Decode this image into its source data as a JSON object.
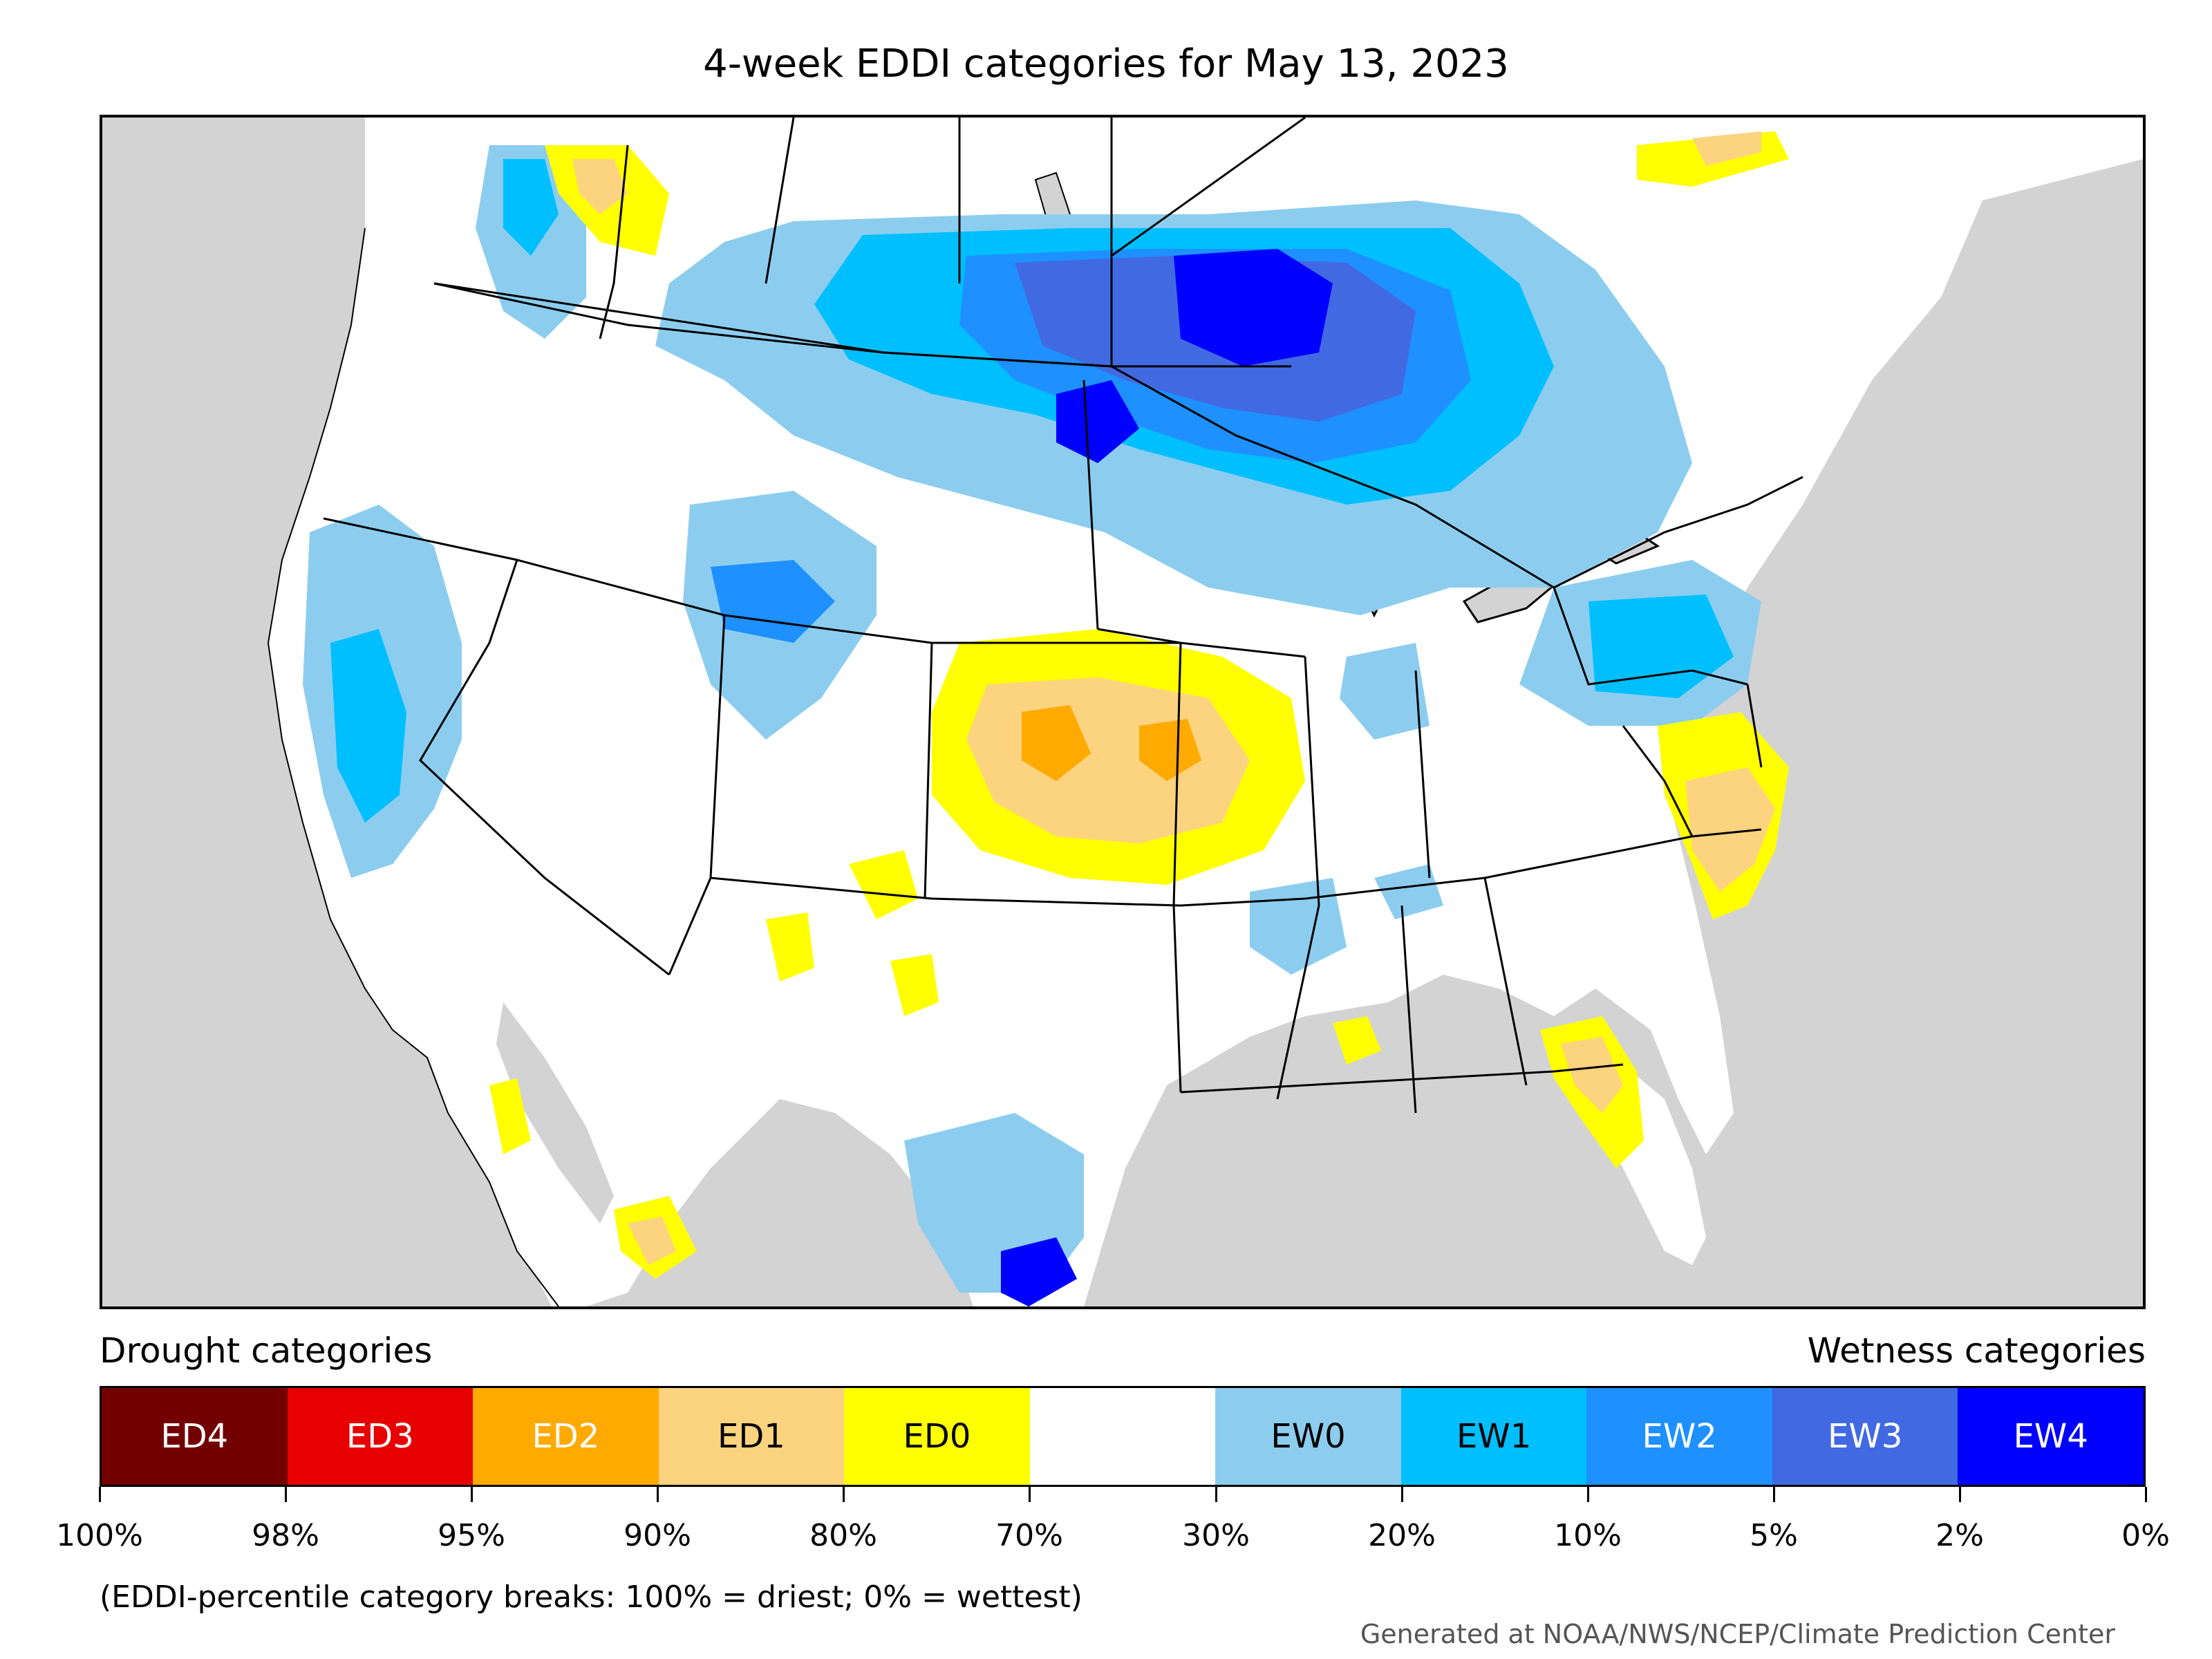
{
  "title": "4-week EDDI categories for May 13, 2023",
  "legend": {
    "left_heading": "Drought categories",
    "right_heading": "Wetness categories",
    "categories": [
      {
        "label": "ED4",
        "color": "#730000",
        "text_color": "#ffffff"
      },
      {
        "label": "ED3",
        "color": "#e60000",
        "text_color": "#ffffff"
      },
      {
        "label": "ED2",
        "color": "#ffaa00",
        "text_color": "#ffffff"
      },
      {
        "label": "ED1",
        "color": "#fcd37f",
        "text_color": "#000000"
      },
      {
        "label": "ED0",
        "color": "#ffff00",
        "text_color": "#000000"
      },
      {
        "label": "",
        "color": "#ffffff",
        "text_color": "#000000"
      },
      {
        "label": "EW0",
        "color": "#8ccdef",
        "text_color": "#000000"
      },
      {
        "label": "EW1",
        "color": "#00bfff",
        "text_color": "#000000"
      },
      {
        "label": "EW2",
        "color": "#1e90ff",
        "text_color": "#ffffff"
      },
      {
        "label": "EW3",
        "color": "#4169e1",
        "text_color": "#ffffff"
      },
      {
        "label": "EW4",
        "color": "#0000ff",
        "text_color": "#ffffff"
      }
    ],
    "ticks": [
      "100%",
      "98%",
      "95%",
      "90%",
      "80%",
      "70%",
      "30%",
      "20%",
      "10%",
      "5%",
      "2%",
      "0%"
    ]
  },
  "note": "(EDDI-percentile category breaks: 100% = driest; 0% = wettest)",
  "credit": "Generated at NOAA/NWS/NCEP/Climate Prediction Center"
}
